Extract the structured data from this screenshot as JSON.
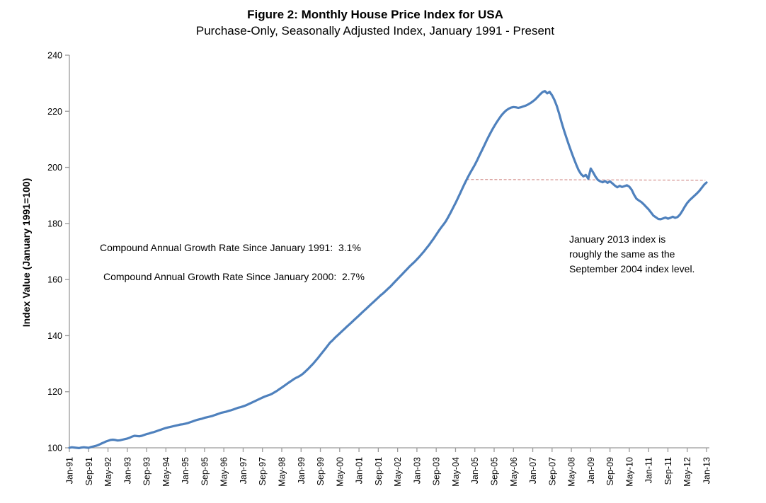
{
  "figure": {
    "title": "Figure 2: Monthly House Price Index for USA",
    "subtitle": "Purchase-Only, Seasonally Adjusted Index, January 1991 - Present"
  },
  "annotations": {
    "cagr_since_1991": "Compound Annual Growth Rate Since January 1991:  3.1%",
    "cagr_since_2000": "Compound Annual Growth Rate Since January 2000:  2.7%",
    "jan_2013_note": "January 2013 index is\nroughly the same as the\nSeptember 2004 index level."
  },
  "colors": {
    "series_line": "#4f81bd",
    "reference_line": "#d89a97",
    "axis": "#9b9b9b",
    "text": "#000000",
    "background": "#ffffff"
  },
  "chart_data": {
    "type": "line",
    "title": "Figure 2: Monthly House Price Index for USA",
    "subtitle": "Purchase-Only, Seasonally Adjusted Index, January 1991 - Present",
    "xlabel": "",
    "ylabel": "Index Value (January 1991=100)",
    "ylim": [
      100,
      240
    ],
    "y_ticks": [
      100,
      120,
      140,
      160,
      180,
      200,
      220,
      240
    ],
    "grid": false,
    "legend": "none",
    "frequency": "monthly",
    "x_start": "Jan-1991",
    "x_end": "Jan-2013",
    "x_tick_interval_months": 8,
    "x_tick_labels": [
      "Jan-91",
      "Sep-91",
      "May-92",
      "Jan-93",
      "Sep-93",
      "May-94",
      "Jan-95",
      "Sep-95",
      "May-96",
      "Jan-97",
      "Sep-97",
      "May-98",
      "Jan-99",
      "Sep-99",
      "May-00",
      "Jan-01",
      "Sep-01",
      "May-02",
      "Jan-03",
      "Sep-03",
      "May-04",
      "Jan-05",
      "Sep-05",
      "May-06",
      "Jan-07",
      "Sep-07",
      "May-08",
      "Jan-09",
      "Sep-09",
      "May-10",
      "Jan-11",
      "Sep-11",
      "May-12",
      "Jan-13"
    ],
    "series": [
      {
        "name": "Monthly House Price Index, USA (Purchase-Only, Seasonally Adjusted)",
        "color": "#4f81bd",
        "values": [
          100.0,
          100.2,
          100.1,
          100.0,
          99.9,
          100.1,
          100.2,
          100.1,
          100.0,
          100.3,
          100.5,
          100.7,
          101.0,
          101.4,
          101.8,
          102.2,
          102.5,
          102.8,
          102.9,
          102.8,
          102.6,
          102.7,
          102.9,
          103.1,
          103.3,
          103.6,
          104.0,
          104.3,
          104.2,
          104.1,
          104.3,
          104.6,
          104.9,
          105.1,
          105.4,
          105.6,
          105.9,
          106.2,
          106.5,
          106.8,
          107.1,
          107.3,
          107.5,
          107.7,
          107.9,
          108.1,
          108.3,
          108.4,
          108.6,
          108.8,
          109.1,
          109.4,
          109.7,
          110.0,
          110.2,
          110.4,
          110.7,
          110.9,
          111.1,
          111.3,
          111.6,
          111.9,
          112.2,
          112.5,
          112.7,
          112.9,
          113.2,
          113.4,
          113.7,
          114.0,
          114.3,
          114.5,
          114.8,
          115.1,
          115.5,
          115.9,
          116.3,
          116.7,
          117.1,
          117.5,
          117.9,
          118.3,
          118.6,
          118.9,
          119.3,
          119.8,
          120.3,
          120.9,
          121.5,
          122.1,
          122.7,
          123.3,
          123.9,
          124.5,
          125.0,
          125.4,
          125.9,
          126.6,
          127.4,
          128.2,
          129.1,
          130.0,
          131.0,
          132.0,
          133.1,
          134.2,
          135.3,
          136.4,
          137.5,
          138.3,
          139.2,
          140.0,
          140.8,
          141.6,
          142.4,
          143.2,
          144.0,
          144.8,
          145.6,
          146.4,
          147.2,
          148.0,
          148.8,
          149.6,
          150.4,
          151.2,
          152.0,
          152.8,
          153.6,
          154.4,
          155.1,
          155.9,
          156.7,
          157.5,
          158.4,
          159.3,
          160.2,
          161.1,
          162.0,
          162.9,
          163.8,
          164.7,
          165.5,
          166.3,
          167.2,
          168.1,
          169.1,
          170.1,
          171.2,
          172.3,
          173.5,
          174.7,
          176.0,
          177.3,
          178.5,
          179.6,
          180.8,
          182.3,
          183.9,
          185.6,
          187.3,
          189.1,
          190.9,
          192.8,
          194.6,
          196.3,
          197.9,
          199.4,
          200.9,
          202.6,
          204.4,
          206.2,
          208.0,
          209.8,
          211.5,
          213.1,
          214.6,
          216.0,
          217.3,
          218.5,
          219.5,
          220.3,
          220.9,
          221.3,
          221.5,
          221.4,
          221.2,
          221.4,
          221.7,
          222.0,
          222.4,
          222.9,
          223.5,
          224.2,
          225.1,
          226.0,
          226.8,
          227.2,
          226.4,
          226.9,
          225.7,
          224.0,
          221.8,
          219.0,
          215.8,
          213.0,
          210.4,
          207.9,
          205.5,
          203.2,
          201.0,
          199.0,
          197.6,
          196.8,
          197.3,
          195.9,
          199.6,
          198.2,
          196.7,
          195.5,
          195.0,
          194.7,
          195.1,
          194.5,
          195.0,
          194.3,
          193.5,
          192.9,
          193.4,
          193.0,
          193.3,
          193.6,
          193.1,
          192.0,
          190.2,
          188.8,
          188.2,
          187.6,
          186.8,
          185.9,
          185.0,
          183.9,
          182.8,
          182.2,
          181.6,
          181.5,
          181.8,
          182.1,
          181.7,
          182.0,
          182.4,
          182.0,
          182.3,
          183.2,
          184.5,
          186.0,
          187.3,
          188.3,
          189.1,
          189.9,
          190.7,
          191.6,
          192.7,
          193.8,
          194.6
        ]
      }
    ],
    "reference_line": {
      "style": "dashed",
      "color": "#d89a97",
      "from": {
        "label": "Sep-04",
        "month_index": 164.5,
        "value": 195.7
      },
      "to": {
        "label": "Jan-13",
        "month_index": 263.5,
        "value": 195.4
      },
      "meaning": "January 2013 index is roughly the same as the September 2004 index level."
    }
  }
}
